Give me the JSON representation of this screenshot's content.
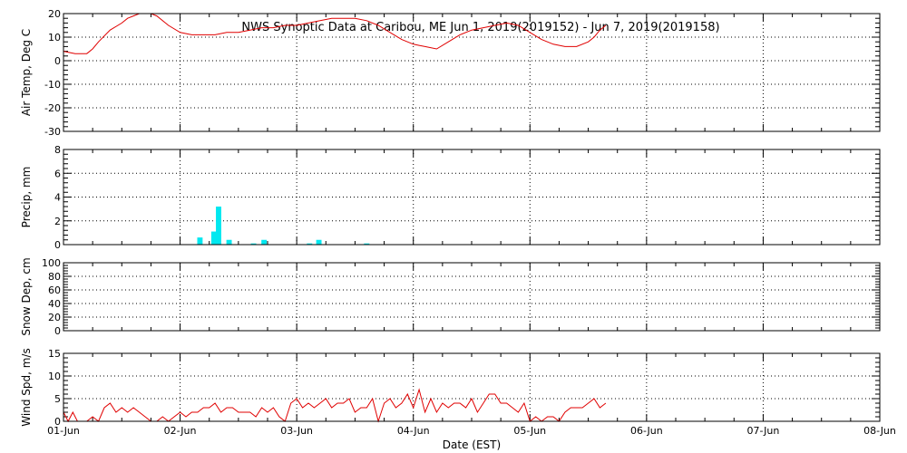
{
  "title": "NWS Synoptic Data at Caribou, ME   Jun  1, 2019(2019152) - Jun  7, 2019(2019158)",
  "xlabel": "Date (EST)",
  "x_ticks": [
    "01-Jun",
    "02-Jun",
    "03-Jun",
    "04-Jun",
    "05-Jun",
    "06-Jun",
    "07-Jun",
    "08-Jun"
  ],
  "colors": {
    "line": "#e00000",
    "bar": "#00e8f0",
    "axis": "#000000"
  },
  "chart_data": [
    {
      "id": "air-temp",
      "type": "line",
      "ylabel": "Air Temp, Deg C",
      "ylim": [
        -30,
        20
      ],
      "yticks": [
        -30,
        -20,
        -10,
        0,
        10,
        20
      ],
      "xlim": [
        0,
        7
      ],
      "grid": true,
      "series": [
        {
          "x": [
            0,
            0.1,
            0.2,
            0.25,
            0.3,
            0.4,
            0.5,
            0.55,
            0.6,
            0.65,
            0.7,
            0.75,
            0.8,
            0.9,
            1.0,
            1.1,
            1.2,
            1.3,
            1.4,
            1.5,
            1.6,
            1.7,
            1.8,
            1.9,
            2.0,
            2.1,
            2.2,
            2.3,
            2.35,
            2.4,
            2.5,
            2.6,
            2.7,
            2.8,
            2.9,
            3.0,
            3.05,
            3.1,
            3.2,
            3.3,
            3.4,
            3.5,
            3.6,
            3.7,
            3.8,
            3.9,
            4.0,
            4.1,
            4.2,
            4.3,
            4.4,
            4.5,
            4.55,
            4.6,
            4.65
          ],
          "y": [
            4,
            3,
            3,
            5,
            8,
            13,
            16,
            18,
            19,
            20,
            20,
            20,
            19,
            15,
            12,
            11,
            11,
            11,
            12,
            12,
            13,
            14,
            14,
            15,
            15,
            16,
            17,
            18,
            18,
            18,
            18,
            17,
            15,
            12,
            9,
            7,
            6.5,
            6,
            5,
            8,
            11,
            13,
            14,
            15,
            16,
            15,
            12,
            9,
            7,
            6,
            6,
            8,
            10,
            13,
            15
          ]
        }
      ]
    },
    {
      "id": "precip",
      "type": "bar",
      "ylabel": "Precip, mm",
      "ylim": [
        0,
        8
      ],
      "yticks": [
        0,
        2,
        4,
        6,
        8
      ],
      "xlim": [
        0,
        7
      ],
      "grid": true,
      "series": [
        {
          "x": [
            1.17,
            1.29,
            1.33,
            1.42,
            1.63,
            1.72,
            2.11,
            2.19,
            2.6
          ],
          "y": [
            0.6,
            1.1,
            3.2,
            0.4,
            0.1,
            0.4,
            0.1,
            0.4,
            0.1
          ]
        }
      ]
    },
    {
      "id": "snow-depth",
      "type": "line",
      "ylabel": "Snow Dep, cm",
      "ylim": [
        0,
        100
      ],
      "yticks": [
        0,
        20,
        40,
        60,
        80,
        100
      ],
      "xlim": [
        0,
        7
      ],
      "grid": true,
      "series": []
    },
    {
      "id": "wind-speed",
      "type": "line",
      "ylabel": "Wind Spd, m/s",
      "ylim": [
        0,
        15
      ],
      "yticks": [
        0,
        5,
        10,
        15
      ],
      "xlim": [
        0,
        7
      ],
      "grid": true,
      "series": [
        {
          "x": [
            0,
            0.04,
            0.08,
            0.12,
            0.16,
            0.2,
            0.25,
            0.3,
            0.35,
            0.4,
            0.45,
            0.5,
            0.55,
            0.6,
            0.65,
            0.7,
            0.75,
            0.8,
            0.85,
            0.9,
            0.95,
            1.0,
            1.05,
            1.1,
            1.15,
            1.2,
            1.25,
            1.3,
            1.35,
            1.4,
            1.45,
            1.5,
            1.55,
            1.6,
            1.65,
            1.7,
            1.75,
            1.8,
            1.85,
            1.9,
            1.95,
            2.0,
            2.05,
            2.1,
            2.15,
            2.2,
            2.25,
            2.3,
            2.35,
            2.4,
            2.45,
            2.5,
            2.55,
            2.6,
            2.65,
            2.7,
            2.75,
            2.8,
            2.85,
            2.9,
            2.95,
            3.0,
            3.05,
            3.1,
            3.15,
            3.2,
            3.25,
            3.3,
            3.35,
            3.4,
            3.45,
            3.5,
            3.55,
            3.6,
            3.65,
            3.7,
            3.75,
            3.8,
            3.85,
            3.9,
            3.95,
            4.0,
            4.05,
            4.1,
            4.15,
            4.2,
            4.25,
            4.3,
            4.35,
            4.4,
            4.45,
            4.5,
            4.55,
            4.6,
            4.65
          ],
          "y": [
            2,
            0,
            2,
            0,
            0,
            0,
            1,
            0,
            3,
            4,
            2,
            3,
            2,
            3,
            2,
            1,
            0,
            0,
            1,
            0,
            1,
            2,
            1,
            2,
            2,
            3,
            3,
            4,
            2,
            3,
            3,
            2,
            2,
            2,
            1,
            3,
            2,
            3,
            1,
            0,
            4,
            5,
            3,
            4,
            3,
            4,
            5,
            3,
            4,
            4,
            5,
            2,
            3,
            3,
            5,
            0,
            4,
            5,
            3,
            4,
            6,
            3,
            7,
            2,
            5,
            2,
            4,
            3,
            4,
            4,
            3,
            5,
            2,
            4,
            6,
            6,
            4,
            4,
            3,
            2,
            4,
            0,
            1,
            0,
            1,
            1,
            0,
            2,
            3,
            3,
            3,
            4,
            5,
            3,
            4
          ]
        }
      ]
    }
  ]
}
